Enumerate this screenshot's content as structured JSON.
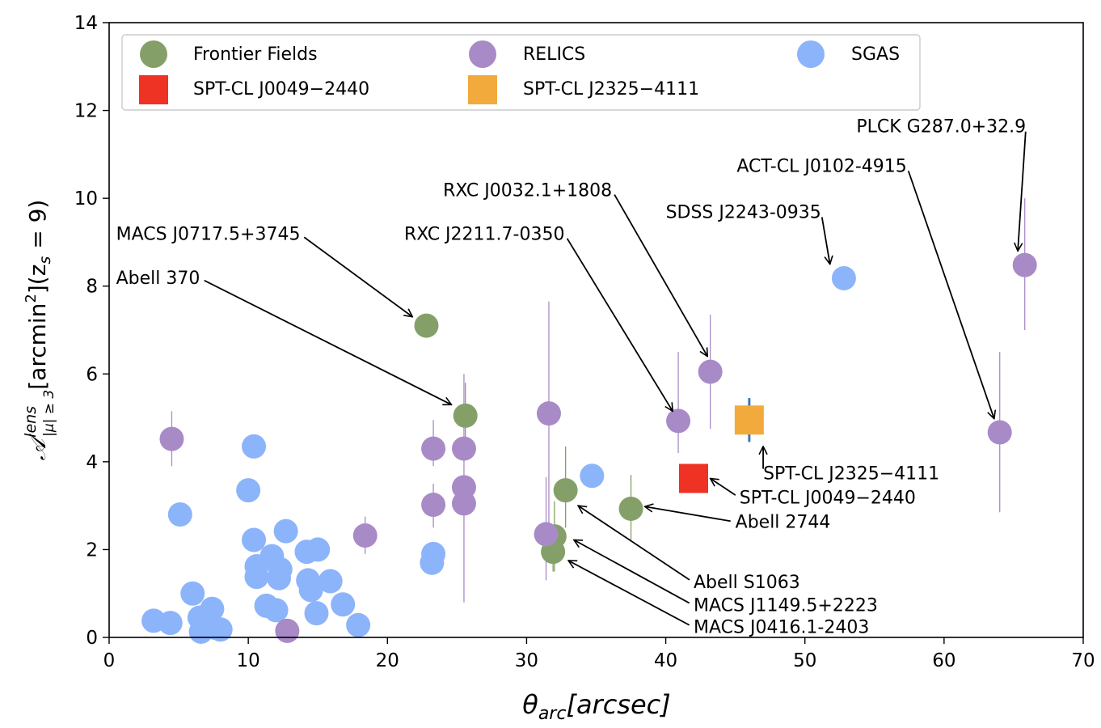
{
  "chart_data": {
    "type": "scatter",
    "x_axis": {
      "label_theta": "θ",
      "label_sub": "arc",
      "label_units": "[arcsec]",
      "range": [
        0,
        70
      ],
      "ticks": [
        0,
        10,
        20,
        30,
        40,
        50,
        60,
        70
      ],
      "tick_labels": [
        "0",
        "10",
        "20",
        "30",
        "40",
        "50",
        "60",
        "70"
      ]
    },
    "y_axis": {
      "label_symbol": "𝒜",
      "label_sup": "lens",
      "label_sub": "|μ| ≥ 3",
      "label_units": "[arcmin",
      "label_units_sup": "2",
      "label_units_end": "](z",
      "label_z_sub": "s",
      "label_end": " = 9)",
      "range": [
        0,
        14
      ],
      "ticks": [
        0,
        2,
        4,
        6,
        8,
        10,
        12,
        14
      ],
      "tick_labels": [
        "0",
        "2",
        "4",
        "6",
        "8",
        "10",
        "12",
        "14"
      ]
    },
    "colors": {
      "frontier": "#84a068",
      "relics": "#a88bc6",
      "sgas": "#8cb4fa",
      "spt0049": "#ee3324",
      "spt2325": "#f2aa3c",
      "errbar_blue": "#3a78b8"
    },
    "legend": [
      {
        "label": "Frontier Fields",
        "series": "frontier",
        "marker": "circle"
      },
      {
        "label": "RELICS",
        "series": "relics",
        "marker": "circle"
      },
      {
        "label": "SGAS",
        "series": "sgas",
        "marker": "circle"
      },
      {
        "label": "SPT-CL J0049−2440",
        "series": "spt0049",
        "marker": "square"
      },
      {
        "label": "SPT-CL J2325−4111",
        "series": "spt2325",
        "marker": "square"
      }
    ],
    "series": [
      {
        "name": "Frontier Fields",
        "key": "frontier",
        "marker": "circle",
        "points": [
          {
            "x": 22.8,
            "y": 7.1,
            "err": [
              7.1,
              7.1
            ]
          },
          {
            "x": 25.6,
            "y": 5.05,
            "err": [
              4.3,
              5.8
            ]
          },
          {
            "x": 32.8,
            "y": 3.35,
            "err": [
              2.5,
              4.35
            ]
          },
          {
            "x": 32.0,
            "y": 2.3,
            "err": [
              1.5,
              3.1
            ]
          },
          {
            "x": 31.9,
            "y": 1.95,
            "err": [
              1.5,
              2.4
            ]
          },
          {
            "x": 37.5,
            "y": 2.93,
            "err": [
              2.2,
              3.7
            ]
          }
        ]
      },
      {
        "name": "RELICS",
        "key": "relics",
        "marker": "circle",
        "points": [
          {
            "x": 4.5,
            "y": 4.52,
            "err": [
              3.9,
              5.15
            ]
          },
          {
            "x": 18.4,
            "y": 2.32,
            "err": [
              1.9,
              2.75
            ]
          },
          {
            "x": 12.8,
            "y": 0.15,
            "err": [
              0.15,
              0.15
            ]
          },
          {
            "x": 23.3,
            "y": 4.3,
            "err": [
              3.9,
              4.95
            ]
          },
          {
            "x": 23.3,
            "y": 3.02,
            "err": [
              2.5,
              3.5
            ]
          },
          {
            "x": 25.5,
            "y": 4.3,
            "err": [
              0.8,
              6.0
            ]
          },
          {
            "x": 25.5,
            "y": 3.42,
            "err": [
              3.42,
              3.42
            ]
          },
          {
            "x": 25.5,
            "y": 3.05,
            "err": [
              3.05,
              3.05
            ]
          },
          {
            "x": 31.6,
            "y": 5.1,
            "err": [
              2.3,
              7.65
            ]
          },
          {
            "x": 31.4,
            "y": 2.35,
            "err": [
              1.3,
              3.65
            ]
          },
          {
            "x": 40.9,
            "y": 4.93,
            "err": [
              4.2,
              6.5
            ]
          },
          {
            "x": 43.2,
            "y": 6.05,
            "err": [
              4.75,
              7.35
            ]
          },
          {
            "x": 64.0,
            "y": 4.67,
            "err": [
              2.85,
              6.5
            ]
          },
          {
            "x": 65.8,
            "y": 8.48,
            "err": [
              7.0,
              10.0
            ]
          }
        ]
      },
      {
        "name": "SGAS",
        "key": "sgas",
        "marker": "circle",
        "points": [
          {
            "x": 3.2,
            "y": 0.38
          },
          {
            "x": 4.4,
            "y": 0.33
          },
          {
            "x": 5.1,
            "y": 2.8
          },
          {
            "x": 6.0,
            "y": 1.0
          },
          {
            "x": 6.5,
            "y": 0.45
          },
          {
            "x": 6.6,
            "y": 0.13
          },
          {
            "x": 7.0,
            "y": 0.3
          },
          {
            "x": 7.4,
            "y": 0.65
          },
          {
            "x": 7.6,
            "y": 0.22
          },
          {
            "x": 8.0,
            "y": 0.18
          },
          {
            "x": 10.0,
            "y": 3.35
          },
          {
            "x": 10.4,
            "y": 4.35
          },
          {
            "x": 10.4,
            "y": 2.22
          },
          {
            "x": 10.6,
            "y": 1.62
          },
          {
            "x": 10.6,
            "y": 1.38
          },
          {
            "x": 11.3,
            "y": 0.72
          },
          {
            "x": 11.7,
            "y": 1.85
          },
          {
            "x": 12.0,
            "y": 0.62
          },
          {
            "x": 12.2,
            "y": 1.35
          },
          {
            "x": 12.3,
            "y": 1.55
          },
          {
            "x": 12.7,
            "y": 2.42
          },
          {
            "x": 14.2,
            "y": 1.95
          },
          {
            "x": 14.3,
            "y": 1.3
          },
          {
            "x": 14.5,
            "y": 1.08
          },
          {
            "x": 14.9,
            "y": 0.55
          },
          {
            "x": 15.0,
            "y": 2.0
          },
          {
            "x": 15.9,
            "y": 1.28
          },
          {
            "x": 16.8,
            "y": 0.75
          },
          {
            "x": 17.9,
            "y": 0.28
          },
          {
            "x": 23.3,
            "y": 1.9
          },
          {
            "x": 23.2,
            "y": 1.7
          },
          {
            "x": 34.7,
            "y": 3.68
          },
          {
            "x": 52.8,
            "y": 8.18
          }
        ]
      },
      {
        "name": "SPT-CL J0049−2440",
        "key": "spt0049",
        "marker": "square",
        "points": [
          {
            "x": 42.0,
            "y": 3.62
          }
        ]
      },
      {
        "name": "SPT-CL J2325−4111",
        "key": "spt2325",
        "marker": "square",
        "points": [
          {
            "x": 46.0,
            "y": 4.95,
            "err": [
              4.45,
              5.45
            ]
          }
        ]
      }
    ],
    "annotations": [
      {
        "text": "PLCK G287.0+32.9",
        "tx": 53.7,
        "ty": 11.5,
        "ax": 65.3,
        "ay": 8.8
      },
      {
        "text": "ACT-CL J0102-4915",
        "tx": 45.1,
        "ty": 10.6,
        "ax": 63.6,
        "ay": 4.98
      },
      {
        "text": "RXC J0032.1+1808",
        "tx": 24.0,
        "ty": 10.05,
        "ax": 43.0,
        "ay": 6.4
      },
      {
        "text": "SDSS J2243-0935",
        "tx": 40.0,
        "ty": 9.55,
        "ax": 51.8,
        "ay": 8.5
      },
      {
        "text": "MACS J0717.5+3745",
        "tx": 0.5,
        "ty": 9.05,
        "ax": 21.8,
        "ay": 7.3
      },
      {
        "text": "RXC J2211.7-0350",
        "tx": 21.2,
        "ty": 9.05,
        "ax": 40.5,
        "ay": 5.15
      },
      {
        "text": "Abell 370",
        "tx": 0.5,
        "ty": 8.05,
        "ax": 24.6,
        "ay": 5.3
      },
      {
        "text": "SPT-CL J2325−4111",
        "tx": 47.0,
        "ty": 3.6,
        "ax": 47.0,
        "ay": 4.35
      },
      {
        "text": "SPT-CL J0049−2440",
        "tx": 45.3,
        "ty": 3.05,
        "ax": 43.2,
        "ay": 3.62
      },
      {
        "text": "Abell 2744",
        "tx": 45.0,
        "ty": 2.5,
        "ax": 38.5,
        "ay": 2.98
      },
      {
        "text": "Abell S1063",
        "tx": 42.0,
        "ty": 1.12,
        "ax": 33.7,
        "ay": 3.0
      },
      {
        "text": "MACS J1149.5+2223",
        "tx": 42.0,
        "ty": 0.6,
        "ax": 33.4,
        "ay": 2.22
      },
      {
        "text": "MACS J0416.1-2403",
        "tx": 42.0,
        "ty": 0.1,
        "ax": 33.0,
        "ay": 1.75
      }
    ]
  }
}
